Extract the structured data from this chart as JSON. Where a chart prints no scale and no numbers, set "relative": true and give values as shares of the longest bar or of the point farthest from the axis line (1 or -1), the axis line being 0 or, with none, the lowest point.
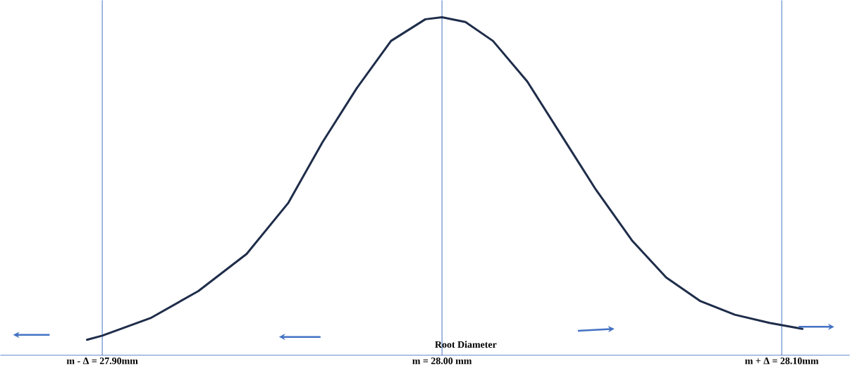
{
  "chart_data": {
    "type": "line",
    "relative": true,
    "xlabel": "Root Diameter",
    "x": [
      27.8955,
      27.9,
      27.9142,
      27.9283,
      27.9425,
      27.9547,
      27.9648,
      27.9749,
      27.985,
      27.9951,
      28.0,
      28.0069,
      28.015,
      28.0251,
      28.0352,
      28.0453,
      28.0559,
      28.066,
      28.0761,
      28.0862,
      28.0964,
      28.1061
    ],
    "series": [
      {
        "color": "#1f2d4a",
        "values": [
          0.046,
          0.058,
          0.11,
          0.19,
          0.3,
          0.45,
          0.63,
          0.79,
          0.93,
          0.994,
          1,
          0.986,
          0.93,
          0.81,
          0.65,
          0.49,
          0.34,
          0.23,
          0.16,
          0.12,
          0.096,
          0.078
        ]
      }
    ],
    "xlim": [
      27.87,
      28.12
    ],
    "xticks": [
      {
        "value": 27.9,
        "label": "m - Δ = 27.90mm"
      },
      {
        "value": 28.0,
        "label": "m = 28.00 mm"
      },
      {
        "value": 28.1,
        "label": "m + Δ = 28.10mm"
      }
    ],
    "marker": "none",
    "line_style": "solid",
    "ref_lines": [
      {
        "axis": "x",
        "value": 27.9,
        "color": "#4472c4"
      },
      {
        "axis": "x",
        "value": 28.0,
        "color": "#4472c4"
      },
      {
        "axis": "x",
        "value": 28.1,
        "color": "#4472c4"
      }
    ]
  }
}
